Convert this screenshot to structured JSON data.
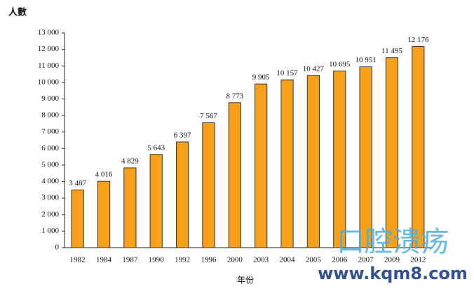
{
  "chart_data": {
    "type": "bar",
    "y_label": "人數",
    "x_label": "年份",
    "categories": [
      "1982",
      "1984",
      "1987",
      "1990",
      "1992",
      "1996",
      "2000",
      "2003",
      "2004",
      "2005",
      "2006",
      "2007",
      "2009",
      "2012"
    ],
    "values": [
      3487,
      4016,
      4829,
      5643,
      6397,
      7567,
      8773,
      9905,
      10157,
      10427,
      10695,
      10951,
      11495,
      12176
    ],
    "value_labels": [
      "3 487",
      "4 016",
      "4 829",
      "5 643",
      "6 397",
      "7 567",
      "8 773",
      "9 905",
      "10 157",
      "10 427",
      "10 695",
      "10 951",
      "11 495",
      "12 176"
    ],
    "color": "#f7a11a",
    "ylim": [
      0,
      13000
    ],
    "yticks": [
      0,
      {
        "value": 1000,
        "label": "1 000"
      },
      {
        "value": 2000,
        "label": "2 000"
      },
      {
        "value": 3000,
        "label": "3 000"
      },
      {
        "value": 4000,
        "label": "4 000"
      },
      {
        "value": 5000,
        "label": "5 000"
      },
      {
        "value": 6000,
        "label": "6 000"
      },
      {
        "value": 7000,
        "label": "7 000"
      },
      {
        "value": 8000,
        "label": "8 000"
      },
      {
        "value": 9000,
        "label": "9 000"
      },
      {
        "value": 10000,
        "label": "10 000"
      },
      {
        "value": 11000,
        "label": "11 000"
      },
      {
        "value": 12000,
        "label": "12 000"
      },
      {
        "value": 13000,
        "label": "13 000"
      }
    ],
    "grid": false,
    "watermark": [
      "口腔溃疡",
      "www.kqm8.com"
    ]
  }
}
